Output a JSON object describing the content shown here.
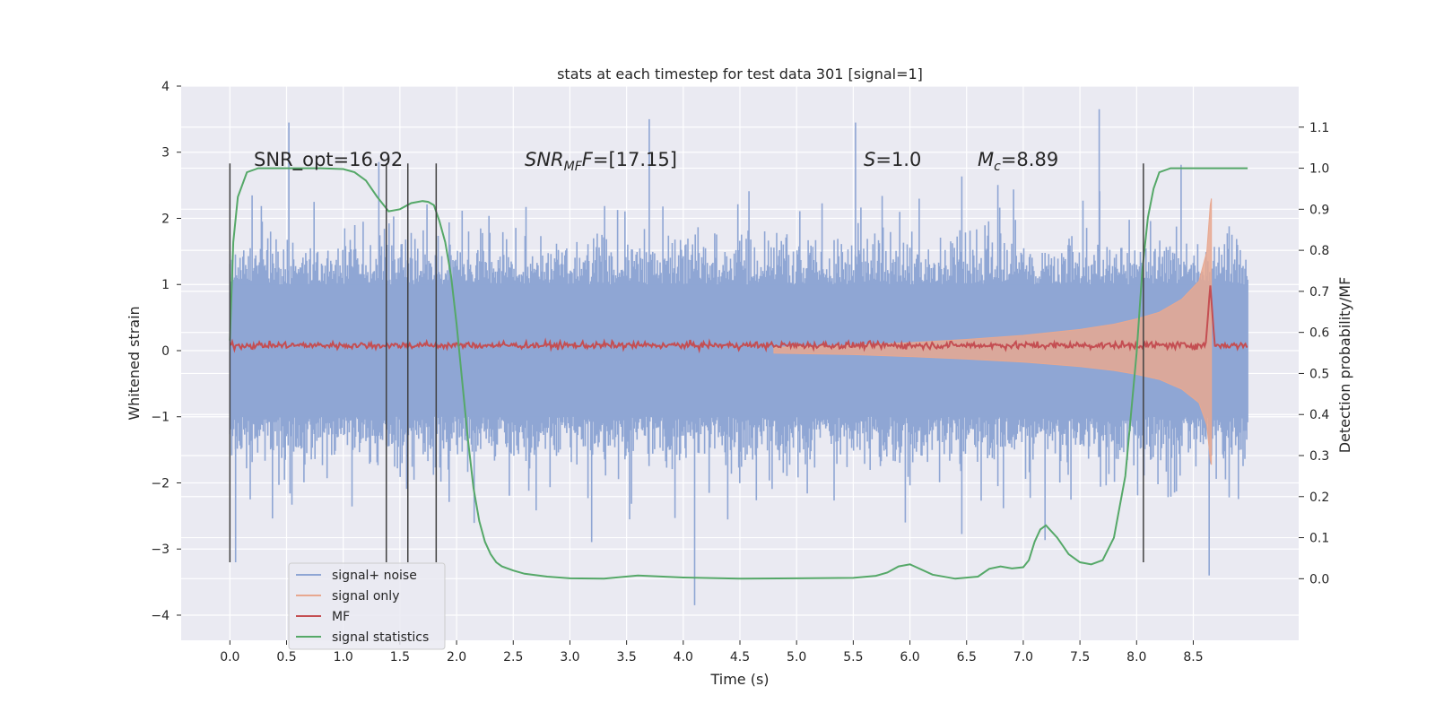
{
  "chart_data": {
    "type": "line",
    "title": "stats at each timestep for test data 301 [signal=1]",
    "xlabel": "Time (s)",
    "ylabel": "Whitened strain",
    "y2label": "Detection probability/MF",
    "xlim": [
      -0.43,
      9.43
    ],
    "ylim": [
      -4.38,
      4.0
    ],
    "y2lim": [
      -0.15,
      1.2
    ],
    "x_ticks": [
      "0.0",
      "0.5",
      "1.0",
      "1.5",
      "2.0",
      "2.5",
      "3.0",
      "3.5",
      "4.0",
      "4.5",
      "5.0",
      "5.5",
      "6.0",
      "6.5",
      "7.0",
      "7.5",
      "8.0",
      "8.5"
    ],
    "y_ticks": [
      "−4",
      "−3",
      "−2",
      "−1",
      "0",
      "1",
      "2",
      "3",
      "4"
    ],
    "y2_ticks": [
      "0.0",
      "0.1",
      "0.2",
      "0.3",
      "0.4",
      "0.5",
      "0.6",
      "0.7",
      "0.8",
      "0.9",
      "1.0",
      "1.1"
    ],
    "grid": true,
    "legend_position": "lower-left",
    "annotations": {
      "snr_opt": "SNR_opt=16.92",
      "snr_mf_base": "SNR",
      "snr_mf_sub": "MF",
      "snr_mf_rest": "=[17.15]",
      "s_italic": "S",
      "s_value": "=1.0",
      "mc_base": "M",
      "mc_sub": "c",
      "mc_value": "=8.89"
    },
    "series": [
      {
        "name": "signal+ noise",
        "color": "#8fa6d4",
        "x_range": [
          0.0,
          8.98
        ],
        "envelope_core": [
          -1.0,
          1.0
        ],
        "notable_peaks": [
          [
            0.52,
            3.45
          ],
          [
            3.7,
            3.5
          ],
          [
            5.52,
            3.45
          ],
          [
            7.67,
            3.65
          ],
          [
            4.1,
            -3.85
          ],
          [
            8.64,
            -3.4
          ],
          [
            0.05,
            -3.2
          ]
        ]
      },
      {
        "name": "signal only",
        "color": "#e8a890",
        "x": [
          4.8,
          5.5,
          6.0,
          6.5,
          7.0,
          7.5,
          7.8,
          8.0,
          8.2,
          8.4,
          8.55,
          8.62,
          8.65,
          8.66
        ],
        "amplitude": [
          0.05,
          0.08,
          0.12,
          0.17,
          0.23,
          0.32,
          0.4,
          0.48,
          0.58,
          0.78,
          1.05,
          1.5,
          2.2,
          2.3
        ]
      },
      {
        "name": "MF",
        "color": "#c44e52",
        "x_range": [
          0.0,
          8.98
        ],
        "baseline": 0.08,
        "peak": [
          8.65,
          1.0
        ]
      },
      {
        "name": "signal statistics",
        "color": "#55a868",
        "x": [
          0.0,
          0.03,
          0.07,
          0.15,
          0.25,
          0.4,
          0.6,
          0.8,
          1.0,
          1.1,
          1.2,
          1.3,
          1.4,
          1.5,
          1.6,
          1.7,
          1.75,
          1.8,
          1.85,
          1.9,
          1.95,
          2.0,
          2.05,
          2.1,
          2.15,
          2.2,
          2.25,
          2.3,
          2.35,
          2.4,
          2.5,
          2.6,
          2.8,
          3.0,
          3.3,
          3.6,
          4.0,
          4.5,
          5.0,
          5.5,
          5.7,
          5.8,
          5.9,
          6.0,
          6.2,
          6.4,
          6.6,
          6.7,
          6.8,
          6.9,
          7.0,
          7.05,
          7.1,
          7.15,
          7.2,
          7.3,
          7.4,
          7.5,
          7.6,
          7.7,
          7.8,
          7.9,
          8.0,
          8.05,
          8.1,
          8.15,
          8.2,
          8.3,
          8.5,
          8.8,
          8.98
        ],
        "y": [
          0.58,
          0.82,
          0.93,
          0.99,
          1.0,
          1.0,
          1.0,
          1.0,
          0.998,
          0.99,
          0.97,
          0.93,
          0.895,
          0.9,
          0.915,
          0.92,
          0.918,
          0.91,
          0.87,
          0.82,
          0.74,
          0.62,
          0.48,
          0.34,
          0.22,
          0.14,
          0.09,
          0.06,
          0.04,
          0.03,
          0.02,
          0.012,
          0.005,
          0.001,
          0.0,
          0.008,
          0.003,
          0.0,
          0.001,
          0.002,
          0.007,
          0.015,
          0.03,
          0.035,
          0.01,
          0.0,
          0.005,
          0.024,
          0.03,
          0.025,
          0.028,
          0.045,
          0.09,
          0.12,
          0.13,
          0.1,
          0.06,
          0.04,
          0.035,
          0.045,
          0.1,
          0.25,
          0.55,
          0.75,
          0.88,
          0.95,
          0.99,
          1.0,
          1.0,
          1.0,
          1.0
        ]
      }
    ],
    "vertical_markers": [
      0.0,
      1.38,
      1.57,
      1.82,
      8.06
    ]
  }
}
